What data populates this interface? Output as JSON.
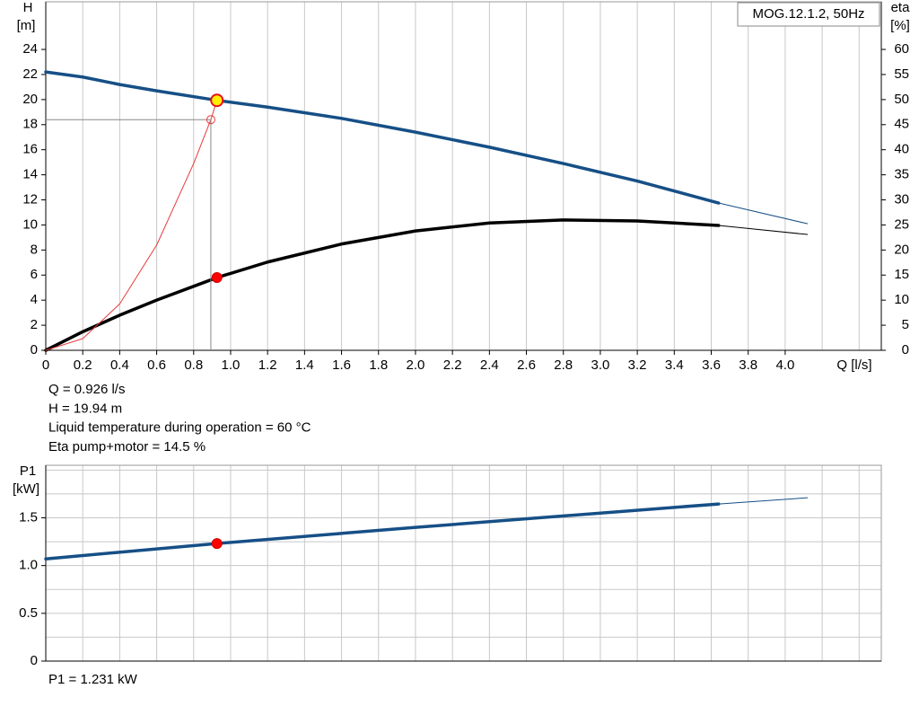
{
  "chart_data": [
    {
      "type": "line",
      "title": "MOG.12.1.2, 50Hz",
      "y_label": "H",
      "y_unit": "[m]",
      "y2_label": "eta",
      "y2_unit": "[%]",
      "x_label": "Q [l/s]",
      "xlim": [
        0,
        4.52
      ],
      "ylim": [
        0,
        27.8
      ],
      "y2lim": [
        0,
        69.5
      ],
      "xticks": [
        0,
        0.2,
        0.4,
        0.6,
        0.8,
        {
          "value": 1,
          "label": "1.0"
        },
        1.2,
        1.4,
        1.6,
        1.8,
        {
          "value": 2,
          "label": "2.0"
        },
        2.2,
        2.4,
        2.6,
        2.8,
        {
          "value": 3,
          "label": "3.0"
        },
        3.2,
        3.4,
        3.6,
        3.8,
        {
          "value": 4,
          "label": "4.0"
        }
      ],
      "xgrid": [
        0.2,
        0.4,
        0.6,
        0.8,
        1,
        1.2,
        1.4,
        1.6,
        1.8,
        2,
        2.2,
        2.4,
        2.6,
        2.8,
        3,
        3.2,
        3.4,
        3.6,
        3.8,
        4,
        4.2,
        4.4
      ],
      "yticks": [
        0,
        2,
        4,
        6,
        8,
        10,
        12,
        14,
        16,
        18,
        20,
        22,
        24
      ],
      "y2ticks": [
        0,
        5,
        10,
        15,
        20,
        25,
        30,
        35,
        40,
        45,
        50,
        55,
        60
      ],
      "series": [
        {
          "axis": "y",
          "color": "#164f86",
          "width": 3.5,
          "x": [
            0,
            0.2,
            0.4,
            0.6,
            0.926,
            1.2,
            1.6,
            2.0,
            2.4,
            2.8,
            3.2,
            3.64
          ],
          "values": [
            22.2,
            21.8,
            21.2,
            20.7,
            19.94,
            19.4,
            18.5,
            17.4,
            16.2,
            14.9,
            13.5,
            11.75
          ]
        },
        {
          "axis": "y",
          "color": "#164f86",
          "width": 1,
          "x": [
            3.64,
            4.12
          ],
          "values": [
            11.75,
            10.1
          ]
        },
        {
          "axis": "y2",
          "color": "#000000",
          "width": 3.5,
          "x": [
            0,
            0.2,
            0.4,
            0.6,
            0.926,
            1.2,
            1.6,
            2.0,
            2.4,
            2.8,
            3.2,
            3.64
          ],
          "values": [
            0,
            3.7,
            7.0,
            10.0,
            14.5,
            17.6,
            21.2,
            23.8,
            25.4,
            26.0,
            25.8,
            24.9
          ]
        },
        {
          "axis": "y2",
          "color": "#000000",
          "width": 1,
          "x": [
            3.64,
            4.12
          ],
          "values": [
            24.9,
            23.1
          ]
        },
        {
          "axis": "y",
          "color": "#e8393b",
          "width": 1,
          "x": [
            0,
            0.2,
            0.4,
            0.6,
            0.8,
            0.893,
            0.926
          ],
          "values": [
            0,
            0.93,
            3.7,
            8.4,
            14.9,
            18.4,
            19.94
          ]
        }
      ],
      "points": [
        {
          "axis": "y",
          "x": 0.893,
          "y": 18.4,
          "style": "hollow",
          "guides": true
        },
        {
          "axis": "y",
          "x": 0.926,
          "y": 19.94,
          "style": "operating"
        },
        {
          "axis": "y2",
          "x": 0.926,
          "y": 14.5,
          "style": "dot"
        }
      ],
      "annotations": [
        "Q = 0.926 l/s",
        "H = 19.94 m",
        "Liquid temperature during operation = 60 °C",
        "Eta pump+motor = 14.5 %"
      ]
    },
    {
      "type": "line",
      "y_label": "P1",
      "y_unit": "[kW]",
      "xlim": [
        0,
        4.52
      ],
      "ylim": [
        0,
        2.05
      ],
      "xgrid": [
        0.2,
        0.4,
        0.6,
        0.8,
        1,
        1.2,
        1.4,
        1.6,
        1.8,
        2,
        2.2,
        2.4,
        2.6,
        2.8,
        3,
        3.2,
        3.4,
        3.6,
        3.8,
        4,
        4.2,
        4.4
      ],
      "yticks": [
        0,
        0.5,
        {
          "value": 1,
          "label": "1.0"
        },
        1.5
      ],
      "ygrid": [
        0.25,
        0.5,
        0.75,
        1,
        1.25,
        1.5,
        1.75,
        2
      ],
      "series": [
        {
          "axis": "y",
          "color": "#164f86",
          "width": 3.5,
          "x": [
            0,
            0.926,
            2.0,
            3.64
          ],
          "values": [
            1.07,
            1.231,
            1.4,
            1.645
          ]
        },
        {
          "axis": "y",
          "color": "#164f86",
          "width": 1,
          "x": [
            3.64,
            4.12
          ],
          "values": [
            1.645,
            1.71
          ]
        }
      ],
      "points": [
        {
          "axis": "y",
          "x": 0.926,
          "y": 1.231,
          "style": "dot"
        }
      ],
      "annotations": [
        "P1 = 1.231 kW"
      ]
    }
  ]
}
